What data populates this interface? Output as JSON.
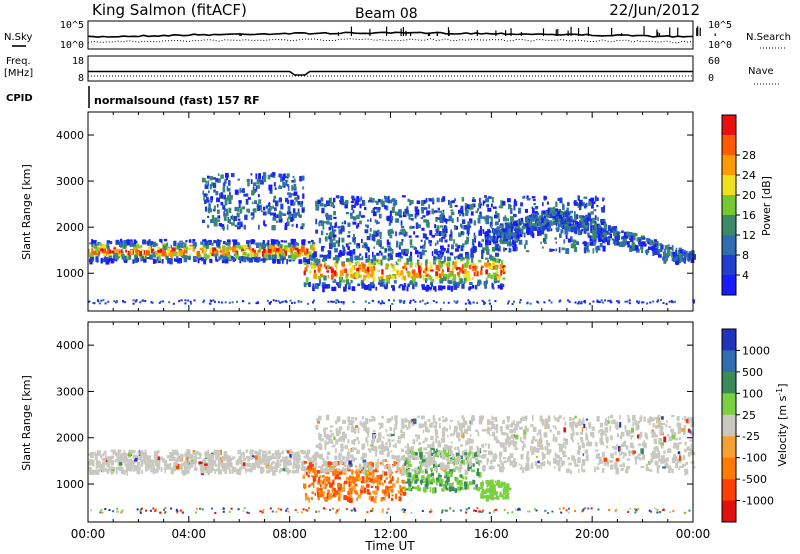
{
  "header": {
    "station": "King Salmon (fitACF)",
    "beam": "Beam 08",
    "date": "22/Jun/2012"
  },
  "side_labels": {
    "nsky": "N.Sky",
    "nsearch": "N.Search",
    "freq_line1": "Freq.",
    "freq_line2": "[MHz]",
    "nave": "Nave",
    "cpid": "CPID",
    "cpid_value": "normalsound (fast) 157 RF"
  },
  "noise_panel": {
    "left_ticks": [
      "10^5",
      "10^0"
    ],
    "right_ticks": [
      "10^5",
      "10^0"
    ]
  },
  "freq_panel": {
    "left_ticks": [
      "18",
      "8"
    ],
    "right_ticks": [
      "60",
      "0"
    ]
  },
  "colors": {
    "power": [
      "#1a1aff",
      "#1f3fd0",
      "#2f6fb0",
      "#3a8a6a",
      "#78c832",
      "#f0e020",
      "#ff9a00",
      "#ff5a00",
      "#e81010"
    ],
    "velocity": [
      "#2233bb",
      "#2f6fb0",
      "#3a8a5a",
      "#7ad040",
      "#c8c8c0",
      "#f5a030",
      "#ff7a00",
      "#ff4000",
      "#e01010"
    ]
  },
  "chart_data": [
    {
      "type": "heatmap",
      "name": "power",
      "xlabel": "",
      "ylabel": "Slant Range [km]",
      "xlim": [
        "00:00",
        "00:00"
      ],
      "ylim": [
        180,
        4500
      ],
      "y_ticks": [
        "1000",
        "2000",
        "3000",
        "4000"
      ],
      "colorbar": {
        "label": "Power [dB]",
        "ticks": [
          "4",
          "8",
          "12",
          "16",
          "20",
          "24",
          "28"
        ]
      },
      "features": [
        {
          "time": "00:00-09:00",
          "range_km": "1300-1750",
          "power_db": "4-28",
          "note": "main band, peak near 1450 km"
        },
        {
          "time": "08:30-16:30",
          "range_km": "700-1500",
          "power_db": "8-28"
        },
        {
          "time": "09:00-20:30",
          "range_km": "1500-2700",
          "power_db": "4-16"
        },
        {
          "time": "16:00-24:00",
          "range_km": "1300-2500",
          "power_db": "4-16",
          "note": "arc peaking ~2450 km near 18:30"
        },
        {
          "time": "04:30-08:30",
          "range_km": "2000-3200",
          "power_db": "4-12"
        }
      ]
    },
    {
      "type": "heatmap",
      "name": "velocity",
      "xlabel": "Time UT",
      "ylabel": "Slant Range [km]",
      "xlim": [
        "00:00",
        "00:00"
      ],
      "ylim": [
        180,
        4500
      ],
      "x_ticks": [
        "00:00",
        "04:00",
        "08:00",
        "12:00",
        "16:00",
        "20:00",
        "00:00"
      ],
      "y_ticks": [
        "1000",
        "2000",
        "3000",
        "4000"
      ],
      "colorbar": {
        "label": "Velocity [m s^-1]",
        "ticks": [
          "1000",
          "500",
          "100",
          "25",
          "-25",
          "-100",
          "-500",
          "-1000"
        ]
      },
      "features": [
        {
          "time": "00:00-09:00",
          "range_km": "1300-1750",
          "velocity_ms": "-25 to 25"
        },
        {
          "time": "08:30-12:30",
          "range_km": "700-1500",
          "velocity_ms": "-100 to -1000"
        },
        {
          "time": "12:30-15:30",
          "range_km": "900-1800",
          "velocity_ms": "100 to 500"
        },
        {
          "time": "15:30-16:40",
          "range_km": "700-1100",
          "velocity_ms": "100"
        },
        {
          "time": "09:00-24:00",
          "range_km": "1300-2500",
          "velocity_ms": "-25 to 25"
        }
      ]
    }
  ]
}
